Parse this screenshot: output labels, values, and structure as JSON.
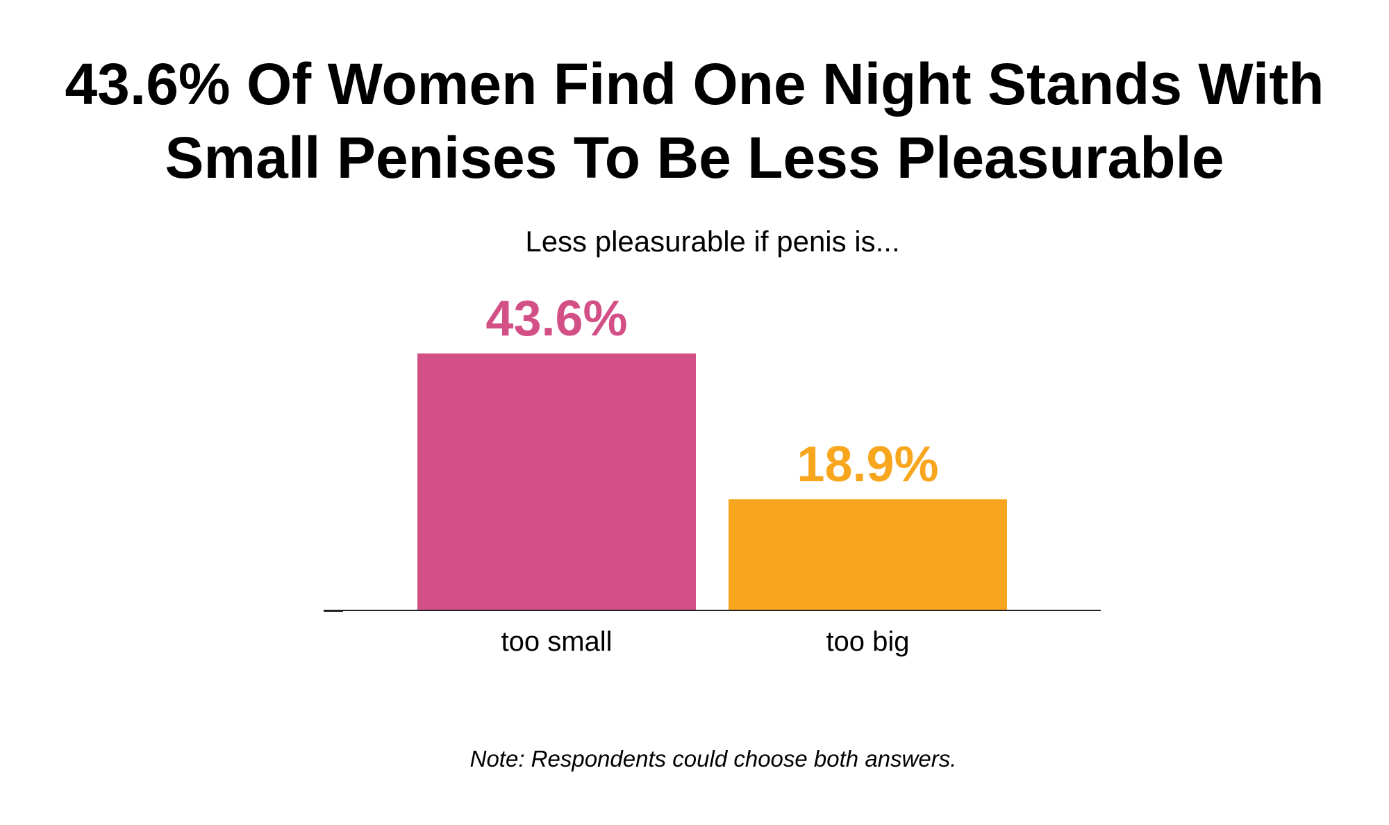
{
  "title": {
    "line1": "43.6% Of Women Find One Night Stands With",
    "line2": "Small Penises To Be Less Pleasurable"
  },
  "subtitle": "Less pleasurable if penis is...",
  "note": "Note: Respondents could choose both answers.",
  "bars": [
    {
      "label": "too small",
      "value": 43.6,
      "value_label": "43.6%",
      "color": "#D35087"
    },
    {
      "label": "too big",
      "value": 18.9,
      "value_label": "18.9%",
      "color": "#F9A61F"
    }
  ],
  "chart_data": {
    "type": "bar",
    "title": "43.6% Of Women Find One Night Stands With Small Penises To Be Less Pleasurable",
    "subtitle": "Less pleasurable if penis is...",
    "categories": [
      "too small",
      "too big"
    ],
    "values": [
      43.6,
      18.9
    ],
    "value_labels": [
      "43.6%",
      "18.9%"
    ],
    "colors": [
      "#D35087",
      "#F9A61F"
    ],
    "xlabel": "",
    "ylabel": "",
    "unit": "%",
    "ylim": [
      0,
      50
    ],
    "grid": false,
    "legend": "none",
    "annotations": [
      "Note: Respondents could choose both answers."
    ]
  }
}
